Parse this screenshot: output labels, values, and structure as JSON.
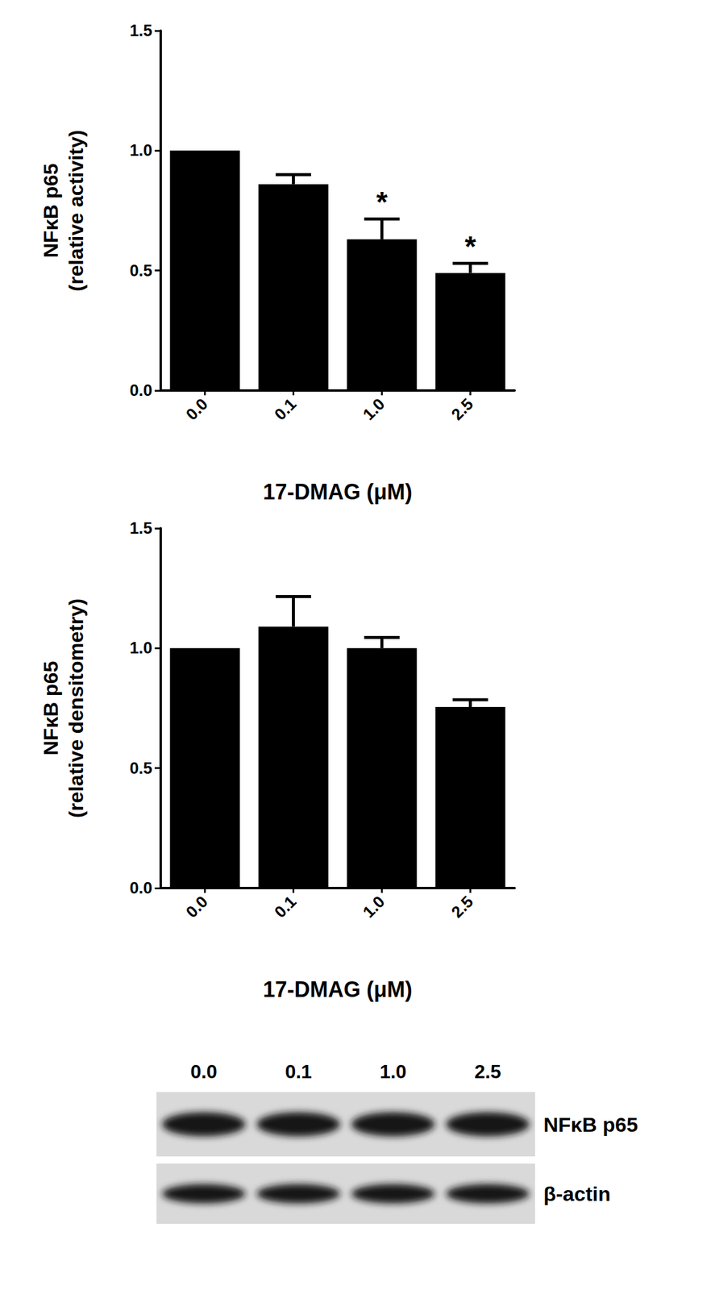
{
  "chart_data": [
    {
      "type": "bar",
      "categories": [
        "0.0",
        "0.1",
        "1.0",
        "2.5"
      ],
      "values": [
        1.0,
        0.86,
        0.63,
        0.49
      ],
      "errors": [
        0,
        0.04,
        0.085,
        0.04
      ],
      "annotations": [
        null,
        null,
        "*",
        "*"
      ],
      "color": "#000000",
      "xlabel": "17-DMAG (μM)",
      "ylabel": "NFκB p65\n(relative activity)",
      "ylim": [
        0,
        1.5
      ],
      "yticks": [
        {
          "value": 0,
          "label": "0.0"
        },
        {
          "value": 0.5,
          "label": "0.5"
        },
        {
          "value": 1,
          "label": "1.0"
        },
        {
          "value": 1.5,
          "label": "1.5"
        }
      ],
      "grid": false
    },
    {
      "type": "bar",
      "categories": [
        "0.0",
        "0.1",
        "1.0",
        "2.5"
      ],
      "values": [
        1.0,
        1.09,
        1.0,
        0.755
      ],
      "errors": [
        0,
        0.125,
        0.045,
        0.03
      ],
      "color": "#000000",
      "xlabel": "17-DMAG (μM)",
      "ylabel": "NFκB p65\n(relative densitometry)",
      "ylim": [
        0,
        1.5
      ],
      "yticks": [
        {
          "value": 0,
          "label": "0.0"
        },
        {
          "value": 0.5,
          "label": "0.5"
        },
        {
          "value": 1,
          "label": "1.0"
        },
        {
          "value": 1.5,
          "label": "1.5"
        }
      ],
      "grid": false
    }
  ],
  "blot": {
    "lanes": [
      "0.0",
      "0.1",
      "1.0",
      "2.5"
    ],
    "rows": [
      "NFκB p65",
      "β-actin"
    ]
  }
}
